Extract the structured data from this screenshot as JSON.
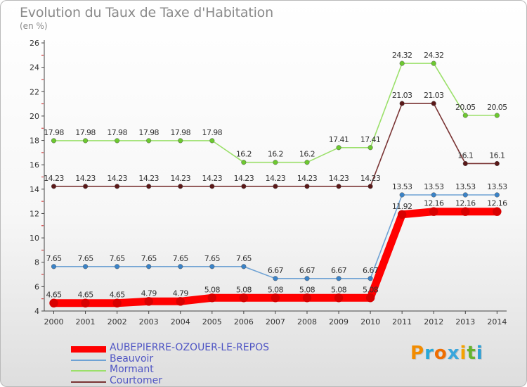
{
  "title": "Evolution du Taux de Taxe d'Habitation",
  "unit": "(en %)",
  "logo": {
    "letters": [
      "P",
      "r",
      "o",
      "x",
      "i",
      "t",
      "i"
    ],
    "colors": [
      "#f28c00",
      "#28a8d8",
      "#ef6d00",
      "#3aa6dc",
      "#f5a300",
      "#66b32e",
      "#2a9fd6"
    ]
  },
  "chart_data": {
    "type": "line",
    "title": "Evolution du Taux de Taxe d'Habitation",
    "ylabel": "(en %)",
    "ylim": [
      4,
      26
    ],
    "yticks": [
      4,
      6,
      8,
      10,
      12,
      14,
      16,
      18,
      20,
      22,
      24,
      26
    ],
    "grid": false,
    "legend_position": "bottom-left",
    "x": [
      "2000",
      "2001",
      "2002",
      "2003",
      "2004",
      "2005",
      "2006",
      "2007",
      "2008",
      "2009",
      "2010",
      "2011",
      "2012",
      "2013",
      "2014"
    ],
    "series": [
      {
        "name": "AUBEPIERRE-OZOUER-LE-REPOS",
        "color": "#ff0000",
        "marker": "#d80000",
        "width": 11,
        "values": [
          4.65,
          4.65,
          4.65,
          4.79,
          4.79,
          5.08,
          5.08,
          5.08,
          5.08,
          5.08,
          5.08,
          11.92,
          12.16,
          12.16,
          12.16
        ],
        "labels": [
          "4.65",
          "4.65",
          "4.65",
          "4.79",
          "4.79",
          "5.08",
          "5.08",
          "5.08",
          "5.08",
          "5.08",
          "5.08",
          "11.92",
          "12.16",
          "12.16",
          "12.16"
        ]
      },
      {
        "name": "Beauvoir",
        "color": "#6ea2d4",
        "marker": "#3a83c8",
        "width": 1.6,
        "values": [
          7.65,
          7.65,
          7.65,
          7.65,
          7.65,
          7.65,
          7.65,
          6.67,
          6.67,
          6.67,
          6.67,
          13.53,
          13.53,
          13.53,
          13.53
        ],
        "labels": [
          "7.65",
          "7.65",
          "7.65",
          "7.65",
          "7.65",
          "7.65",
          "7.65",
          "6.67",
          "6.67",
          "6.67",
          "6.67",
          "13.53",
          "13.53",
          "13.53",
          "13.53"
        ]
      },
      {
        "name": "Mormant",
        "color": "#9be06a",
        "marker": "#6cc92f",
        "width": 1.6,
        "values": [
          17.98,
          17.98,
          17.98,
          17.98,
          17.98,
          17.98,
          16.2,
          16.2,
          16.2,
          17.41,
          17.41,
          24.32,
          24.32,
          20.05,
          20.05
        ],
        "labels": [
          "17.98",
          "17.98",
          "17.98",
          "17.98",
          "17.98",
          "17.98",
          "16.2",
          "16.2",
          "16.2",
          "17.41",
          "17.41",
          "24.32",
          "24.32",
          "20.05",
          "20.05"
        ]
      },
      {
        "name": "Courtomer",
        "color": "#7a3434",
        "marker": "#5a1818",
        "width": 1.6,
        "values": [
          14.23,
          14.23,
          14.23,
          14.23,
          14.23,
          14.23,
          14.23,
          14.23,
          14.23,
          14.23,
          14.23,
          21.03,
          21.03,
          16.1,
          16.1
        ],
        "labels": [
          "14.23",
          "14.23",
          "14.23",
          "14.23",
          "14.23",
          "14.23",
          "14.23",
          "14.23",
          "14.23",
          "14.23",
          "14.23",
          "21.03",
          "21.03",
          "16.1",
          "16.1"
        ]
      }
    ]
  }
}
